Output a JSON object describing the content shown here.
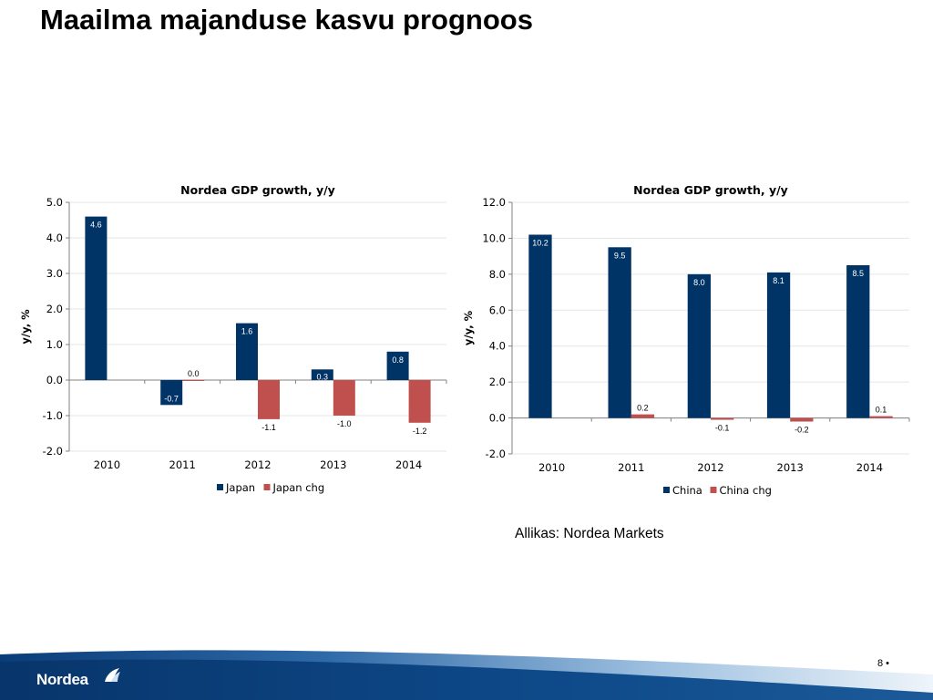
{
  "slide": {
    "title": "Maailma majanduse kasvu prognoos",
    "source": "Allikas: Nordea Markets",
    "page_number": "8 •",
    "logo_text": "Nordea"
  },
  "colors": {
    "series_primary": "#003366",
    "series_change": "#c0504d",
    "grid": "#e6e6e6",
    "footer_blue": "#0b3f7a"
  },
  "chart_data": [
    {
      "type": "bar",
      "title": "Nordea GDP growth, y/y",
      "ylabel": "y/y, %",
      "xlabel": "",
      "categories": [
        "2010",
        "2011",
        "2012",
        "2013",
        "2014"
      ],
      "series": [
        {
          "name": "Japan",
          "values": [
            4.6,
            -0.7,
            1.6,
            0.3,
            0.8
          ],
          "labels": [
            "4.6",
            "-0.7",
            "1.6",
            "0.3",
            "0.8"
          ]
        },
        {
          "name": "Japan chg",
          "values": [
            null,
            0.0,
            -1.1,
            -1.0,
            -1.2
          ],
          "labels": [
            "",
            "0.0",
            "-1.1",
            "-1.0",
            "-1.2"
          ]
        }
      ],
      "ylim": [
        -2.0,
        5.0
      ],
      "yticks": [
        "-2.0",
        "-1.0",
        "0.0",
        "1.0",
        "2.0",
        "3.0",
        "4.0",
        "5.0"
      ],
      "grid": true,
      "legend": "bottom"
    },
    {
      "type": "bar",
      "title": "Nordea GDP growth, y/y",
      "ylabel": "y/y, %",
      "xlabel": "",
      "categories": [
        "2010",
        "2011",
        "2012",
        "2013",
        "2014"
      ],
      "series": [
        {
          "name": "China",
          "values": [
            10.2,
            9.5,
            8.0,
            8.1,
            8.5
          ],
          "labels": [
            "10.2",
            "9.5",
            "8.0",
            "8.1",
            "8.5"
          ]
        },
        {
          "name": "China chg",
          "values": [
            null,
            0.2,
            -0.1,
            -0.2,
            0.1
          ],
          "labels": [
            "",
            "0.2",
            "-0.1",
            "-0.2",
            "0.1"
          ]
        }
      ],
      "ylim": [
        -2.0,
        12.0
      ],
      "yticks": [
        "-2.0",
        "0.0",
        "2.0",
        "4.0",
        "6.0",
        "8.0",
        "10.0",
        "12.0"
      ],
      "grid": true,
      "legend": "bottom"
    }
  ]
}
